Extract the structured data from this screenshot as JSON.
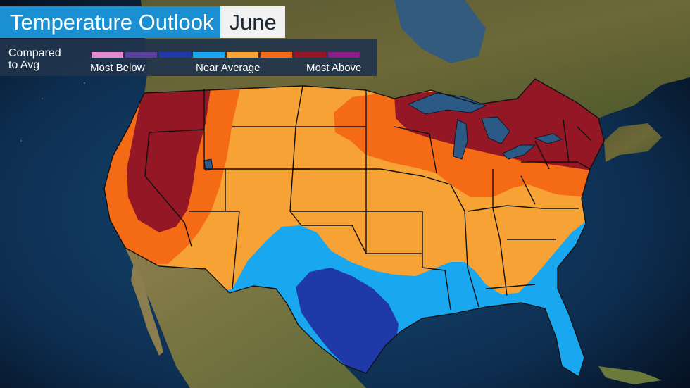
{
  "title": {
    "main": "Temperature Outlook",
    "month": "June"
  },
  "legend": {
    "label_line1": "Compared",
    "label_line2": "to Avg",
    "tick_low": "Most Below",
    "tick_mid": "Near Average",
    "tick_high": "Most Above",
    "categories": [
      {
        "key": "b4",
        "color": "#e38ad0"
      },
      {
        "key": "b3",
        "color": "#5a3fa0"
      },
      {
        "key": "b2",
        "color": "#1f3aa8"
      },
      {
        "key": "b1",
        "color": "#19a8f0"
      },
      {
        "key": "a1",
        "color": "#f7a235"
      },
      {
        "key": "a2",
        "color": "#f56a14"
      },
      {
        "key": "a3",
        "color": "#931724"
      },
      {
        "key": "a4",
        "color": "#8a1d8a"
      }
    ]
  },
  "colors": {
    "ocean": "#0d2d4f",
    "land": "#6b6436",
    "lake": "#2c5a86",
    "border": "#111111"
  }
}
